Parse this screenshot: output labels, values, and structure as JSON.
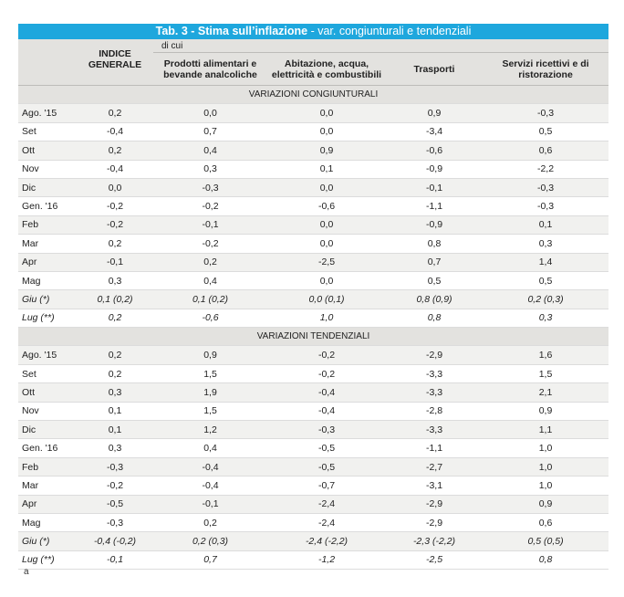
{
  "title": {
    "bold": "Tab. 3 - Stima sull’inflazione",
    "rest": " - var. congiunturali e tendenziali"
  },
  "header": {
    "dicui": "di cui",
    "col1": "INDICE GENERALE",
    "col2": "Prodotti alimentari e bevande analcoliche",
    "col3": "Abitazione, acqua, elettricità e combustibili",
    "col4": "Trasporti",
    "col5": "Servizi ricettivi e di ristorazione"
  },
  "sections": [
    {
      "label": "VARIAZIONI CONGIUNTURALI",
      "rows": [
        [
          "Ago. '15",
          "0,2",
          "0,0",
          "0,0",
          "0,9",
          "-0,3"
        ],
        [
          "Set",
          "-0,4",
          "0,7",
          "0,0",
          "-3,4",
          "0,5"
        ],
        [
          "Ott",
          "0,2",
          "0,4",
          "0,9",
          "-0,6",
          "0,6"
        ],
        [
          "Nov",
          "-0,4",
          "0,3",
          "0,1",
          "-0,9",
          "-2,2"
        ],
        [
          "Dic",
          "0,0",
          "-0,3",
          "0,0",
          "-0,1",
          "-0,3"
        ],
        [
          "Gen. '16",
          "-0,2",
          "-0,2",
          "-0,6",
          "-1,1",
          "-0,3"
        ],
        [
          "Feb",
          "-0,2",
          "-0,1",
          "0,0",
          "-0,9",
          "0,1"
        ],
        [
          "Mar",
          "0,2",
          "-0,2",
          "0,0",
          "0,8",
          "0,3"
        ],
        [
          "Apr",
          "-0,1",
          "0,2",
          "-2,5",
          "0,7",
          "1,4"
        ],
        [
          "Mag",
          "0,3",
          "0,4",
          "0,0",
          "0,5",
          "0,5"
        ],
        [
          "Giu (*)",
          "0,1 (0,2)",
          "0,1 (0,2)",
          "0,0 (0,1)",
          "0,8 (0,9)",
          "0,2 (0,3)"
        ],
        [
          "Lug (**)",
          "0,2",
          "-0,6",
          "1,0",
          "0,8",
          "0,3"
        ]
      ]
    },
    {
      "label": "VARIAZIONI TENDENZIALI",
      "rows": [
        [
          "Ago. '15",
          "0,2",
          "0,9",
          "-0,2",
          "-2,9",
          "1,6"
        ],
        [
          "Set",
          "0,2",
          "1,5",
          "-0,2",
          "-3,3",
          "1,5"
        ],
        [
          "Ott",
          "0,3",
          "1,9",
          "-0,4",
          "-3,3",
          "2,1"
        ],
        [
          "Nov",
          "0,1",
          "1,5",
          "-0,4",
          "-2,8",
          "0,9"
        ],
        [
          "Dic",
          "0,1",
          "1,2",
          "-0,3",
          "-3,3",
          "1,1"
        ],
        [
          "Gen. '16",
          "0,3",
          "0,4",
          "-0,5",
          "-1,1",
          "1,0"
        ],
        [
          "Feb",
          "-0,3",
          "-0,4",
          "-0,5",
          "-2,7",
          "1,0"
        ],
        [
          "Mar",
          "-0,2",
          "-0,4",
          "-0,7",
          "-3,1",
          "1,0"
        ],
        [
          "Apr",
          "-0,5",
          "-0,1",
          "-2,4",
          "-2,9",
          "0,9"
        ],
        [
          "Mag",
          "-0,3",
          "0,2",
          "-2,4",
          "-2,9",
          "0,6"
        ],
        [
          "Giu (*)",
          "-0,4 (-0,2)",
          "0,2 (0,3)",
          "-2,4 (-2,2)",
          "-2,3 (-2,2)",
          "0,5 (0,5)"
        ],
        [
          "Lug (**)",
          "-0,1",
          "0,7",
          "-1,2",
          "-2,5",
          "0,8"
        ]
      ]
    }
  ],
  "footnote": "a",
  "colors": {
    "title_bg": "#1ea7dd",
    "header_bg": "#e3e2df",
    "stripe": "#f1f1ef"
  }
}
